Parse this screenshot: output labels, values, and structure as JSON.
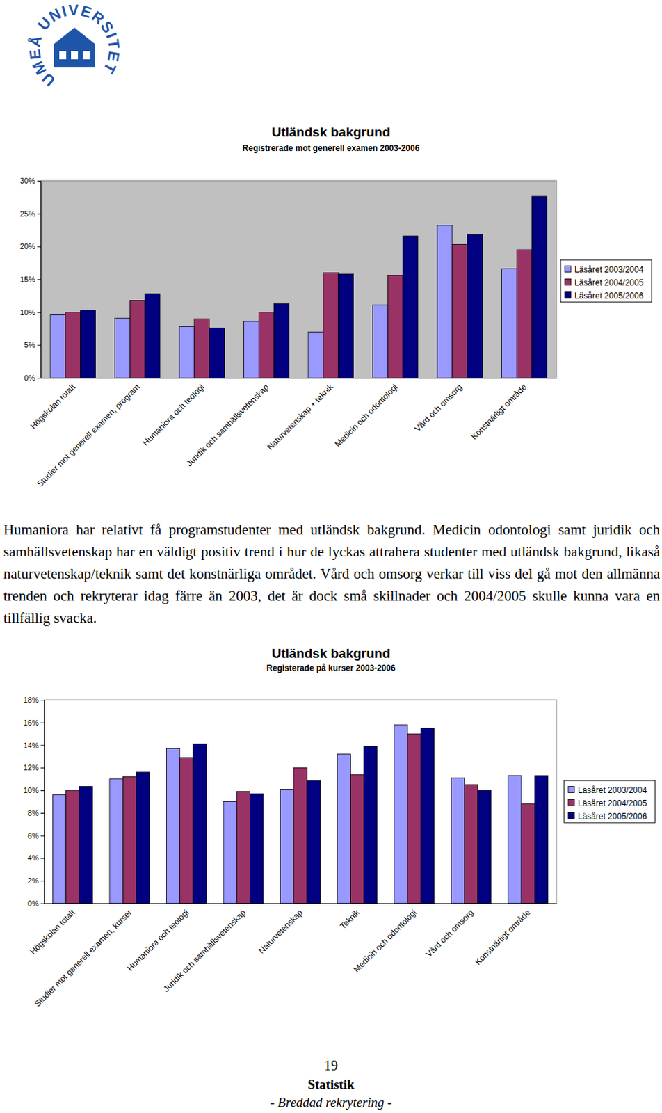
{
  "logo": {
    "text": "UMEÅ UNIVERSITET"
  },
  "chart_data": [
    {
      "type": "bar",
      "title": "Utländsk bakgrund",
      "subtitle": "Registrerade mot generell examen 2003-2006",
      "categories": [
        "Högskolan totalt",
        "Studier mot generell examen, program",
        "Humaniora och teologi",
        "Juridik och samhällsvetenskap",
        "Naturvetenskap + teknik",
        "Medicin och odontologi",
        "Vård och omsorg",
        "Konstnärligt område"
      ],
      "series": [
        {
          "name": "Läsåret 2003/2004",
          "color": "#9999ff",
          "values": [
            9.6,
            9.1,
            7.8,
            8.6,
            7.0,
            11.1,
            23.2,
            16.6
          ]
        },
        {
          "name": "Läsåret 2004/2005",
          "color": "#993366",
          "values": [
            10.0,
            11.8,
            9.0,
            10.0,
            16.0,
            15.6,
            20.3,
            19.5
          ]
        },
        {
          "name": "Läsåret 2005/2006",
          "color": "#000080",
          "values": [
            10.3,
            12.8,
            7.6,
            11.3,
            15.8,
            21.6,
            21.8,
            27.6
          ]
        }
      ],
      "ylim": [
        0,
        30
      ],
      "yticks": [
        {
          "value": 0,
          "label": "0%"
        },
        {
          "value": 5,
          "label": "5%"
        },
        {
          "value": 10,
          "label": "10%"
        },
        {
          "value": 15,
          "label": "15%"
        },
        {
          "value": 20,
          "label": "20%"
        },
        {
          "value": 25,
          "label": "25%"
        },
        {
          "value": 30,
          "label": "30%"
        }
      ],
      "grid": false,
      "legend": "right"
    },
    {
      "type": "bar",
      "title": "Utländsk bakgrund",
      "subtitle": "Registerade på kurser 2003-2006",
      "categories": [
        "Högskolan totalt",
        "Studier mot generell examen, kurser",
        "Humaniora och teologi",
        "Juridik och samhällsvetenskap",
        "Naturvetenskap",
        "Teknik",
        "Medicin och odontologi",
        "Vård och omsorg",
        "Konstnärligt område"
      ],
      "series": [
        {
          "name": "Läsåret 2003/2004",
          "color": "#9999ff",
          "values": [
            9.6,
            11.0,
            13.7,
            9.0,
            10.1,
            13.2,
            15.8,
            11.1,
            11.3
          ]
        },
        {
          "name": "Läsåret 2004/2005",
          "color": "#993366",
          "values": [
            10.0,
            11.2,
            12.9,
            9.9,
            12.0,
            11.4,
            15.0,
            10.5,
            8.8
          ]
        },
        {
          "name": "Läsåret 2005/2006",
          "color": "#000080",
          "values": [
            10.35,
            11.6,
            14.1,
            9.7,
            10.85,
            13.9,
            15.5,
            10.0,
            11.3
          ]
        }
      ],
      "ylim": [
        0,
        18
      ],
      "yticks": [
        {
          "value": 0,
          "label": "0%"
        },
        {
          "value": 2,
          "label": "2%"
        },
        {
          "value": 4,
          "label": "4%"
        },
        {
          "value": 6,
          "label": "6%"
        },
        {
          "value": 8,
          "label": "8%"
        },
        {
          "value": 10,
          "label": "10%"
        },
        {
          "value": 12,
          "label": "12%"
        },
        {
          "value": 14,
          "label": "14%"
        },
        {
          "value": 16,
          "label": "16%"
        },
        {
          "value": 18,
          "label": "18%"
        }
      ],
      "grid": false,
      "legend": "right"
    }
  ],
  "text": {
    "paragraph": "Humaniora har relativt få programstudenter med utländsk bakgrund. Medicin odontologi samt juridik och samhällsvetenskap har en väldigt positiv trend i hur de lyckas attrahera studenter med utländsk bakgrund, likaså naturvetenskap/teknik samt det konstnärliga området. Vård och omsorg verkar till viss del gå mot den allmänna trenden och rekryterar idag färre än 2003, det är dock små skillnader och 2004/2005 skulle kunna vara en tillfällig svacka.",
    "page_number": "19",
    "section": "Statistik",
    "footer": "- Breddad rekrytering -"
  }
}
